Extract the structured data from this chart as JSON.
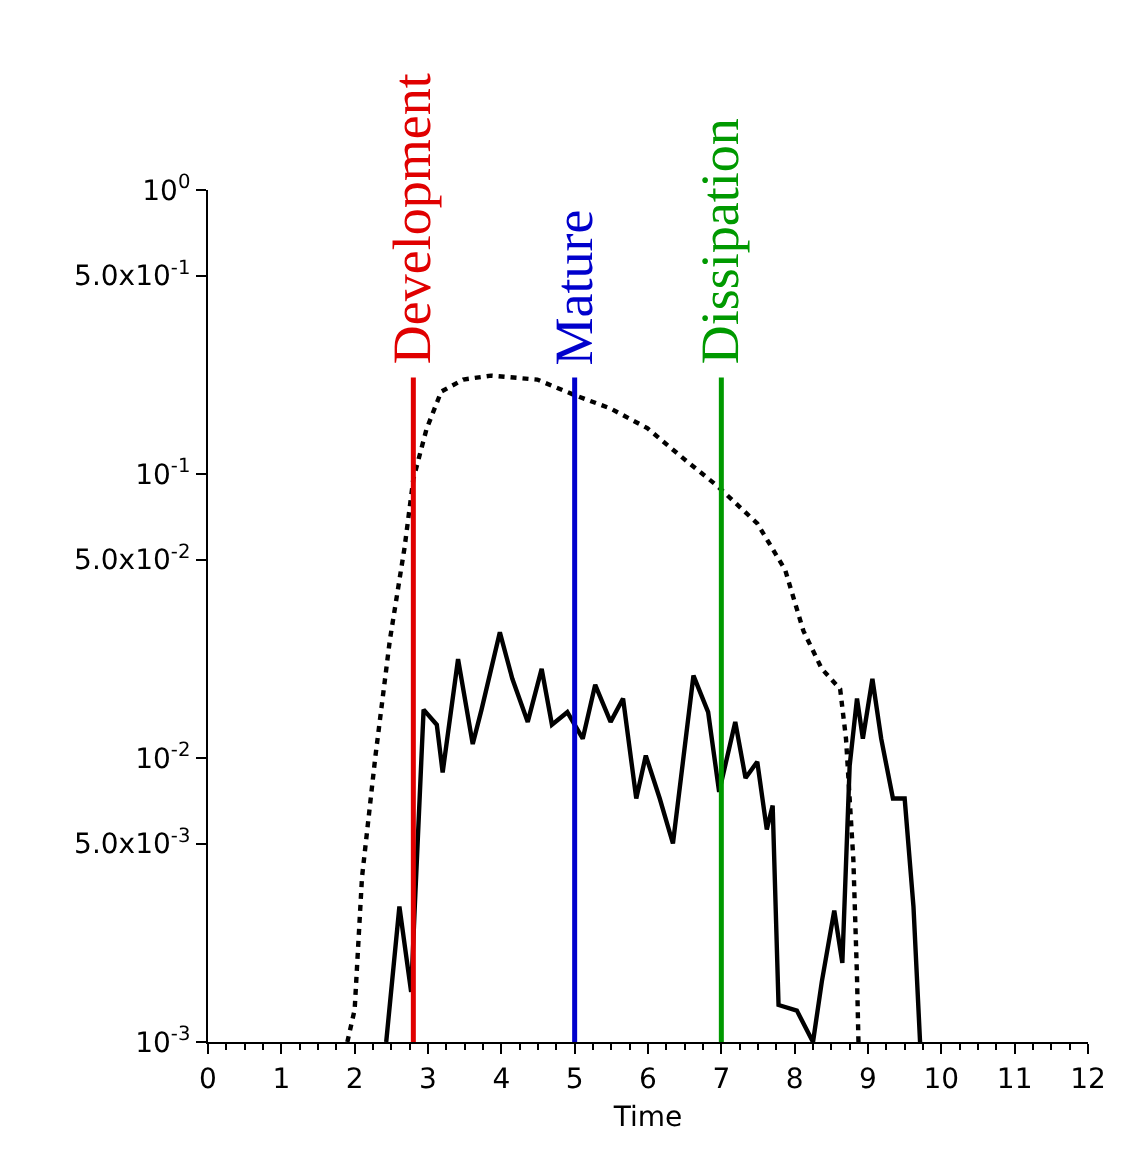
{
  "chart_data": {
    "type": "line",
    "xlabel": "Time",
    "log": "y",
    "xlim": [
      0,
      12
    ],
    "xticks": [
      0,
      1,
      2,
      3,
      4,
      5,
      6,
      7,
      8,
      9,
      10,
      11,
      12
    ],
    "ylim": [
      0.001,
      1
    ],
    "yticks": [
      {
        "value": 0.001,
        "label": "10$^{-3}$"
      },
      {
        "value": 0.005,
        "label": "5.0x10$^{-3}$"
      },
      {
        "value": 0.01,
        "label": "10$^{-2}$"
      },
      {
        "value": 0.05,
        "label": "5.0x10$^{-2}$"
      },
      {
        "value": 0.1,
        "label": "10$^{-1}$"
      },
      {
        "value": 0.5,
        "label": "5.0x10$^{-1}$"
      },
      {
        "value": 1,
        "label": "10$^{0}$"
      }
    ],
    "series": [
      {
        "color": "#000000",
        "line_style": "dotted",
        "x": [
          1.9,
          2.0,
          2.1,
          2.28,
          2.48,
          2.68,
          2.8,
          2.98,
          3.18,
          3.48,
          3.86,
          4.49,
          4.99,
          5.49,
          5.99,
          6.49,
          6.94,
          7.49,
          7.87,
          8.12,
          8.37,
          8.62,
          8.7,
          8.8,
          8.85,
          8.87
        ],
        "values": [
          0.001,
          0.0013,
          0.0038,
          0.01,
          0.026,
          0.055,
          0.096,
          0.144,
          0.195,
          0.215,
          0.222,
          0.215,
          0.19,
          0.17,
          0.145,
          0.113,
          0.091,
          0.067,
          0.046,
          0.028,
          0.0206,
          0.0175,
          0.0117,
          0.0044,
          0.0017,
          0.001
        ]
      },
      {
        "color": "#000000",
        "line_style": "solid",
        "x": [
          2.43,
          2.61,
          2.77,
          2.82,
          2.94,
          3.12,
          3.2,
          3.41,
          3.61,
          3.73,
          3.98,
          4.15,
          4.36,
          4.55,
          4.69,
          4.9,
          5.11,
          5.28,
          5.49,
          5.66,
          5.84,
          5.97,
          6.16,
          6.34,
          6.62,
          6.82,
          6.97,
          7.19,
          7.33,
          7.49,
          7.62,
          7.7,
          7.78,
          8.03,
          8.25,
          8.37,
          8.54,
          8.65,
          8.75,
          8.85,
          8.93,
          9.06,
          9.18,
          9.34,
          9.5,
          9.62,
          9.71
        ],
        "values": [
          0.001,
          0.003,
          0.0015,
          0.003,
          0.0148,
          0.0131,
          0.0089,
          0.0223,
          0.0112,
          0.0148,
          0.0277,
          0.019,
          0.0134,
          0.0206,
          0.0131,
          0.0145,
          0.0117,
          0.0181,
          0.0134,
          0.0162,
          0.0072,
          0.0102,
          0.0072,
          0.005,
          0.0195,
          0.0145,
          0.0076,
          0.0134,
          0.0085,
          0.0097,
          0.0056,
          0.0068,
          0.00135,
          0.00129,
          0.001,
          0.00163,
          0.0029,
          0.0019,
          0.0094,
          0.0162,
          0.0117,
          0.019,
          0.0117,
          0.0072,
          0.0072,
          0.003,
          0.001
        ]
      }
    ],
    "ref_lines": [
      {
        "axis": "x",
        "value": 2.8,
        "label": "Development",
        "color": "#e00000"
      },
      {
        "axis": "x",
        "value": 5,
        "label": "Mature",
        "color": "#0000cc"
      },
      {
        "axis": "x",
        "value": 7,
        "label": "Dissipation",
        "color": "#009900"
      }
    ]
  }
}
